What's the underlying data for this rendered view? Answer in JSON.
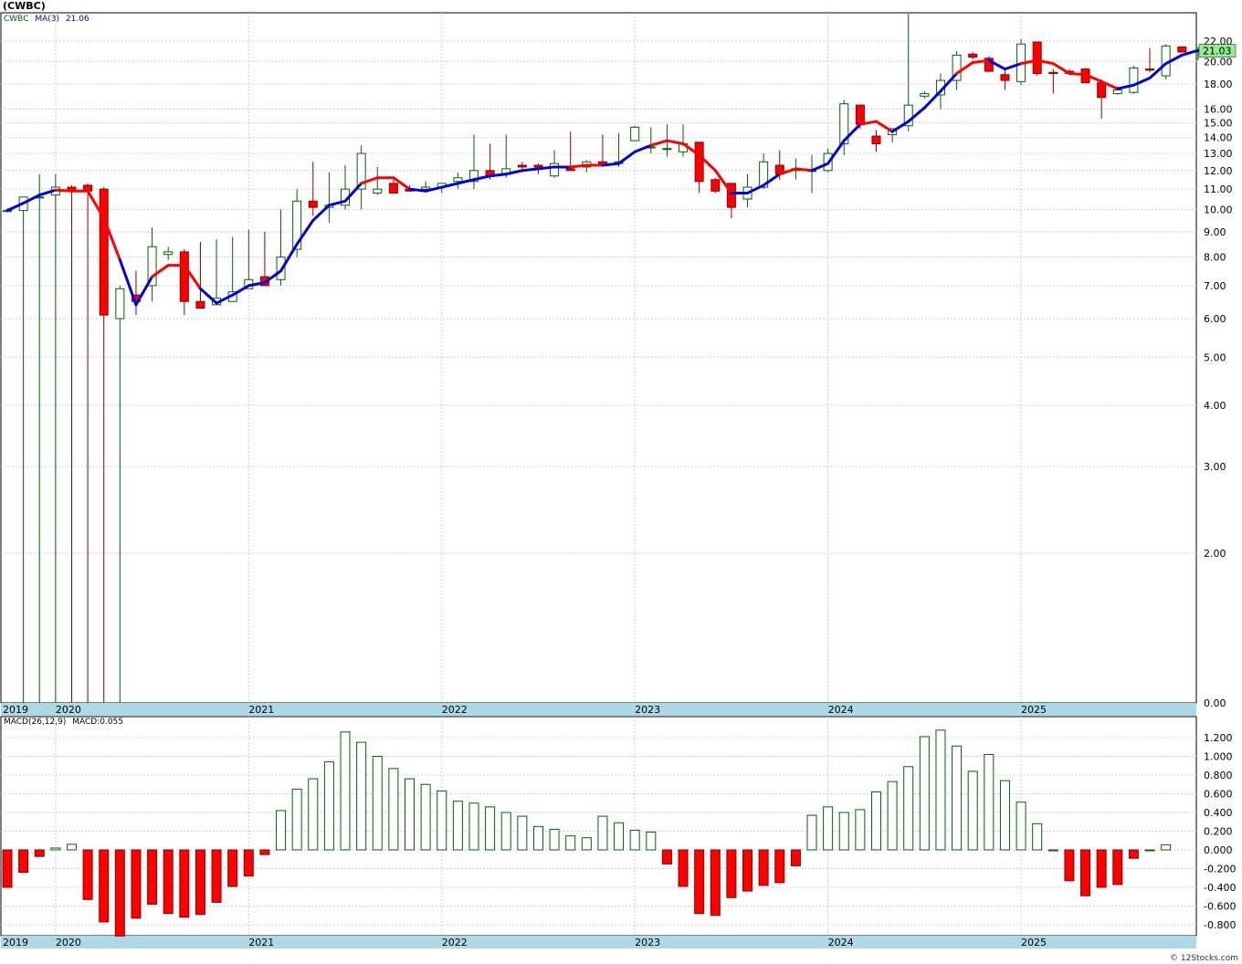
{
  "header": {
    "title": "(CWBC)",
    "ticker": "CWBC",
    "ma_label": "MA(3)",
    "ma_value": "21.06",
    "last_price": "21.03"
  },
  "macd_panel": {
    "label": "MACD(26,12,9)",
    "value_label": "MACD:0.055"
  },
  "credit": "© 12Stocks.com",
  "colors": {
    "up": "#006400",
    "down": "#ff0000",
    "down_outline": "#8b0000",
    "ma_up": "#0000dd",
    "ma_down": "#ff0000",
    "axis_band": "#add8e6",
    "last_price_box": "#90ee90"
  },
  "chart_data": [
    {
      "type": "candlestick",
      "title": "(CWBC)",
      "scale": "log",
      "ylim": [
        0,
        22.8
      ],
      "y_ticks": [
        "22.00",
        "20.00",
        "18.00",
        "16.00",
        "15.00",
        "14.00",
        "13.00",
        "12.00",
        "11.00",
        "10.00",
        "9.00",
        "8.00",
        "7.00",
        "6.00",
        "5.00",
        "4.00",
        "3.00",
        "2.00",
        "0.00"
      ],
      "x_year_labels": [
        "2019",
        "2020",
        "2021",
        "2022",
        "2023",
        "2024",
        "2025"
      ],
      "series_label": "MA(3)",
      "candles": [
        [
          "2019-10",
          9.9,
          10.05,
          9.9,
          9.95
        ],
        [
          "2019-11",
          9.95,
          10.6,
          0,
          10.6
        ],
        [
          "2019-12",
          10.6,
          11.8,
          0,
          10.6
        ],
        [
          "2020-01",
          10.7,
          11.8,
          0,
          11.1
        ],
        [
          "2020-02",
          11.1,
          11.2,
          0,
          10.9
        ],
        [
          "2020-03",
          11.2,
          11.3,
          0,
          10.9
        ],
        [
          "2020-04",
          11.0,
          11.1,
          0,
          6.1
        ],
        [
          "2020-05",
          6.0,
          7.0,
          0,
          6.9
        ],
        [
          "2020-06",
          6.7,
          7.5,
          6.1,
          6.5
        ],
        [
          "2020-07",
          7.0,
          9.2,
          6.5,
          8.4
        ],
        [
          "2020-08",
          8.1,
          8.4,
          7.9,
          8.2
        ],
        [
          "2020-09",
          8.2,
          8.3,
          6.1,
          6.5
        ],
        [
          "2020-10",
          6.5,
          8.6,
          6.3,
          6.3
        ],
        [
          "2020-11",
          6.4,
          8.7,
          6.4,
          6.6
        ],
        [
          "2020-12",
          6.5,
          8.8,
          6.5,
          6.8
        ],
        [
          "2021-01",
          6.9,
          9.1,
          6.9,
          7.2
        ],
        [
          "2021-02",
          7.3,
          9.0,
          7.1,
          7.0
        ],
        [
          "2021-03",
          7.2,
          10.0,
          7.0,
          8.0
        ],
        [
          "2021-04",
          8.3,
          11.0,
          8.0,
          10.4
        ],
        [
          "2021-05",
          10.4,
          12.5,
          9.7,
          10.1
        ],
        [
          "2021-06",
          10.1,
          11.9,
          9.4,
          10.2
        ],
        [
          "2021-07",
          10.2,
          12.3,
          10.0,
          11.0
        ],
        [
          "2021-08",
          11.0,
          13.5,
          10.0,
          13.0
        ],
        [
          "2021-09",
          10.8,
          12.2,
          10.7,
          11.0
        ],
        [
          "2021-10",
          11.3,
          11.5,
          10.8,
          10.8
        ],
        [
          "2021-11",
          11.0,
          11.2,
          10.9,
          10.9
        ],
        [
          "2021-12",
          11.0,
          11.4,
          10.9,
          11.1
        ],
        [
          "2022-01",
          11.1,
          11.3,
          10.8,
          11.3
        ],
        [
          "2022-02",
          11.4,
          11.9,
          11.0,
          11.6
        ],
        [
          "2022-03",
          11.4,
          14.2,
          11.0,
          12.0
        ],
        [
          "2022-04",
          12.0,
          13.6,
          11.5,
          11.7
        ],
        [
          "2022-05",
          11.8,
          14.2,
          11.6,
          12.1
        ],
        [
          "2022-06",
          12.3,
          12.5,
          11.9,
          12.2
        ],
        [
          "2022-07",
          12.3,
          12.4,
          11.8,
          12.2
        ],
        [
          "2022-08",
          11.7,
          13.2,
          11.6,
          12.4
        ],
        [
          "2022-09",
          12.1,
          14.4,
          12.0,
          12.0
        ],
        [
          "2022-10",
          12.2,
          12.6,
          11.9,
          12.5
        ],
        [
          "2022-11",
          12.5,
          14.2,
          12.3,
          12.3
        ],
        [
          "2022-12",
          12.4,
          14.3,
          12.2,
          12.5
        ],
        [
          "2023-01",
          13.8,
          14.8,
          13.8,
          14.7
        ],
        [
          "2023-02",
          13.4,
          14.7,
          13.0,
          13.4
        ],
        [
          "2023-03",
          13.3,
          14.9,
          12.8,
          13.3
        ],
        [
          "2023-04",
          13.1,
          14.9,
          12.8,
          13.6
        ],
        [
          "2023-05",
          13.7,
          13.7,
          10.8,
          11.4
        ],
        [
          "2023-06",
          11.5,
          11.6,
          10.8,
          10.9
        ],
        [
          "2023-07",
          11.3,
          11.3,
          9.6,
          10.1
        ],
        [
          "2023-08",
          10.5,
          11.8,
          10.1,
          11.1
        ],
        [
          "2023-09",
          11.1,
          13.0,
          11.0,
          12.5
        ],
        [
          "2023-10",
          12.3,
          13.2,
          11.5,
          11.8
        ],
        [
          "2023-11",
          12.0,
          12.7,
          11.5,
          12.1
        ],
        [
          "2023-12",
          12.0,
          12.9,
          10.8,
          12.0
        ],
        [
          "2024-01",
          12.0,
          13.3,
          11.9,
          13.0
        ],
        [
          "2024-02",
          13.6,
          16.7,
          12.9,
          16.4
        ],
        [
          "2024-03",
          16.3,
          16.3,
          14.6,
          14.9
        ],
        [
          "2024-04",
          14.1,
          14.5,
          13.1,
          13.6
        ],
        [
          "2024-05",
          14.2,
          14.5,
          13.7,
          14.6
        ],
        [
          "2024-06",
          14.8,
          25.0,
          14.4,
          16.3
        ],
        [
          "2024-07",
          17.0,
          17.4,
          16.8,
          17.2
        ],
        [
          "2024-08",
          17.1,
          18.9,
          16.0,
          18.3
        ],
        [
          "2024-09",
          18.3,
          21.0,
          17.5,
          20.6
        ],
        [
          "2024-10",
          20.7,
          20.9,
          20.2,
          20.4
        ],
        [
          "2024-11",
          20.3,
          20.5,
          19.0,
          19.1
        ],
        [
          "2024-12",
          18.8,
          19.3,
          17.5,
          18.3
        ],
        [
          "2025-01",
          18.2,
          22.2,
          17.9,
          21.7
        ],
        [
          "2025-02",
          21.9,
          21.9,
          18.7,
          18.9
        ],
        [
          "2025-03",
          19.0,
          19.3,
          17.2,
          18.9
        ],
        [
          "2025-04",
          19.1,
          19.3,
          18.8,
          18.9
        ],
        [
          "2025-05",
          19.3,
          19.4,
          18.3,
          18.1
        ],
        [
          "2025-06",
          18.1,
          18.4,
          15.3,
          16.9
        ],
        [
          "2025-07",
          17.2,
          17.8,
          17.1,
          17.5
        ],
        [
          "2025-08",
          17.3,
          19.6,
          17.2,
          19.4
        ],
        [
          "2025-09",
          19.3,
          21.3,
          19.0,
          19.2
        ],
        [
          "2025-10",
          18.7,
          21.7,
          18.4,
          21.5
        ],
        [
          "2025-11",
          21.4,
          21.5,
          20.9,
          20.9
        ],
        [
          "2025-12",
          20.9,
          21.4,
          20.1,
          21.03
        ]
      ],
      "ma": [
        9.95,
        10.3,
        10.7,
        10.95,
        10.9,
        10.9,
        9.6,
        7.9,
        6.4,
        7.3,
        7.7,
        7.7,
        6.9,
        6.45,
        6.7,
        7.0,
        7.1,
        7.5,
        8.5,
        9.5,
        10.2,
        10.4,
        11.3,
        11.6,
        11.6,
        11.0,
        10.9,
        11.1,
        11.3,
        11.5,
        11.7,
        11.8,
        12.0,
        12.1,
        12.2,
        12.2,
        12.3,
        12.3,
        12.4,
        13.1,
        13.5,
        13.8,
        13.6,
        12.9,
        12.0,
        10.8,
        10.8,
        11.2,
        11.8,
        12.1,
        12.0,
        12.4,
        13.8,
        14.9,
        15.1,
        14.4,
        15.1,
        16.1,
        17.4,
        18.9,
        19.9,
        20.1,
        19.3,
        19.8,
        20.1,
        19.8,
        18.9,
        18.8,
        18.2,
        17.6,
        17.9,
        18.5,
        19.8,
        20.6,
        21.06
      ],
      "ma_trend_down": [
        false,
        false,
        false,
        false,
        true,
        true,
        true,
        true,
        false,
        false,
        true,
        true,
        true,
        false,
        false,
        false,
        false,
        false,
        false,
        false,
        false,
        false,
        false,
        true,
        true,
        true,
        false,
        false,
        false,
        false,
        false,
        false,
        false,
        false,
        false,
        false,
        true,
        true,
        false,
        false,
        false,
        true,
        true,
        true,
        true,
        true,
        false,
        false,
        false,
        true,
        true,
        false,
        false,
        false,
        true,
        true,
        false,
        false,
        false,
        false,
        true,
        true,
        false,
        false,
        true,
        true,
        true,
        true,
        true,
        true,
        false,
        false,
        false,
        false,
        false
      ]
    },
    {
      "type": "bar",
      "title": "MACD(26,12,9)",
      "ylim": [
        -0.9,
        1.35
      ],
      "y_ticks": [
        "1.200",
        "1.000",
        "0.800",
        "0.600",
        "0.400",
        "0.200",
        "0.000",
        "-0.200",
        "-0.400",
        "-0.600",
        "-0.800"
      ],
      "x_year_labels": [
        "2019",
        "2020",
        "2021",
        "2022",
        "2023",
        "2024",
        "2025"
      ],
      "values": [
        -0.4,
        -0.24,
        -0.07,
        0.02,
        0.06,
        -0.53,
        -0.77,
        -0.92,
        -0.73,
        -0.58,
        -0.68,
        -0.72,
        -0.69,
        -0.56,
        -0.39,
        -0.28,
        -0.05,
        0.42,
        0.65,
        0.76,
        0.94,
        1.26,
        1.15,
        1.0,
        0.87,
        0.76,
        0.7,
        0.63,
        0.52,
        0.5,
        0.46,
        0.4,
        0.36,
        0.25,
        0.22,
        0.15,
        0.13,
        0.36,
        0.29,
        0.21,
        0.19,
        -0.15,
        -0.39,
        -0.68,
        -0.7,
        -0.51,
        -0.44,
        -0.38,
        -0.35,
        -0.17,
        0.37,
        0.46,
        0.4,
        0.43,
        0.62,
        0.73,
        0.89,
        1.21,
        1.28,
        1.11,
        0.84,
        1.02,
        0.74,
        0.51,
        0.28,
        0.0,
        -0.33,
        -0.49,
        -0.4,
        -0.37,
        -0.09,
        0.0,
        0.055
      ]
    }
  ]
}
